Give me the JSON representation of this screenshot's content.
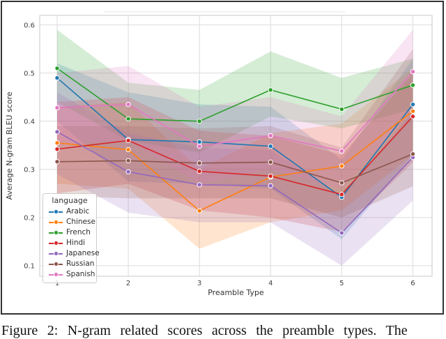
{
  "figure": {
    "caption_visible": "Figure 2: N-gram related scores across the preamble types. The"
  },
  "chart_data": {
    "type": "line",
    "title": "",
    "xlabel": "Preamble Type",
    "ylabel": "Average N-gram BLEU score",
    "x": [
      1,
      2,
      3,
      4,
      5,
      6
    ],
    "xticks": [
      "1",
      "2",
      "3",
      "4",
      "5",
      "6"
    ],
    "yticks": [
      0.1,
      0.2,
      0.3,
      0.4,
      0.5,
      0.6
    ],
    "xlim": [
      0.755,
      6.27
    ],
    "ylim": [
      0.078,
      0.62
    ],
    "grid": true,
    "legend": {
      "title": "language",
      "position": "lower-left"
    },
    "series": [
      {
        "name": "Arabic",
        "color": "#1f77b4",
        "values": [
          0.49,
          0.362,
          0.357,
          0.348,
          0.242,
          0.435
        ],
        "band_low": [
          0.4,
          0.275,
          0.27,
          0.26,
          0.155,
          0.33
        ],
        "band_high": [
          0.52,
          0.46,
          0.435,
          0.43,
          0.32,
          0.53
        ]
      },
      {
        "name": "Chinese",
        "color": "#ff7f0e",
        "values": [
          0.355,
          0.341,
          0.214,
          0.284,
          0.307,
          0.421
        ],
        "band_low": [
          0.27,
          0.26,
          0.135,
          0.19,
          0.215,
          0.33
        ],
        "band_high": [
          0.43,
          0.44,
          0.3,
          0.375,
          0.395,
          0.51
        ]
      },
      {
        "name": "French",
        "color": "#2ca02c",
        "values": [
          0.51,
          0.405,
          0.4,
          0.465,
          0.425,
          0.475
        ],
        "band_low": [
          0.44,
          0.36,
          0.335,
          0.41,
          0.385,
          0.425
        ],
        "band_high": [
          0.59,
          0.48,
          0.465,
          0.545,
          0.49,
          0.53
        ]
      },
      {
        "name": "Hindi",
        "color": "#d62728",
        "values": [
          0.342,
          0.36,
          0.296,
          0.286,
          0.248,
          0.41
        ],
        "band_low": [
          0.25,
          0.27,
          0.215,
          0.2,
          0.17,
          0.315
        ],
        "band_high": [
          0.44,
          0.45,
          0.38,
          0.37,
          0.33,
          0.5
        ]
      },
      {
        "name": "Japanese",
        "color": "#9467bd",
        "values": [
          0.378,
          0.295,
          0.268,
          0.266,
          0.168,
          0.325
        ],
        "band_low": [
          0.29,
          0.21,
          0.19,
          0.19,
          0.1,
          0.235
        ],
        "band_high": [
          0.46,
          0.375,
          0.345,
          0.34,
          0.245,
          0.42
        ]
      },
      {
        "name": "Russian",
        "color": "#8c564b",
        "values": [
          0.316,
          0.318,
          0.313,
          0.315,
          0.272,
          0.332
        ],
        "band_low": [
          0.245,
          0.24,
          0.24,
          0.24,
          0.2,
          0.265
        ],
        "band_high": [
          0.39,
          0.39,
          0.385,
          0.39,
          0.345,
          0.55
        ]
      },
      {
        "name": "Spanish",
        "color": "#e377c2",
        "values": [
          0.428,
          0.435,
          0.348,
          0.37,
          0.338,
          0.503
        ],
        "band_low": [
          0.35,
          0.36,
          0.27,
          0.3,
          0.26,
          0.42
        ],
        "band_high": [
          0.5,
          0.515,
          0.43,
          0.45,
          0.41,
          0.59
        ]
      }
    ]
  }
}
